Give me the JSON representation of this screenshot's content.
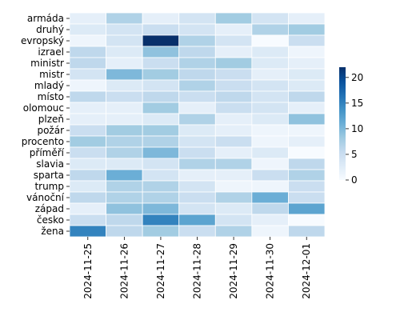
{
  "chart_data": {
    "type": "heatmap",
    "title": "",
    "xlabel": "",
    "ylabel": "",
    "x_categories": [
      "2024-11-25",
      "2024-11-26",
      "2024-11-27",
      "2024-11-28",
      "2024-11-29",
      "2024-11-30",
      "2024-12-01"
    ],
    "y_categories": [
      "armáda",
      "druhý",
      "evropský",
      "izrael",
      "ministr",
      "mistr",
      "mladý",
      "místo",
      "olomouc",
      "plzeň",
      "požár",
      "procento",
      "příměří",
      "slavia",
      "sparta",
      "trump",
      "vánoční",
      "západ",
      "česko",
      "žena"
    ],
    "values": [
      [
        2,
        7,
        2,
        4,
        8,
        4,
        2
      ],
      [
        3,
        4,
        5,
        4,
        2,
        7,
        8
      ],
      [
        1,
        4,
        22,
        7,
        4,
        0,
        5
      ],
      [
        6,
        3,
        9,
        6,
        2,
        3,
        1
      ],
      [
        6,
        2,
        5,
        7,
        8,
        3,
        2
      ],
      [
        4,
        10,
        8,
        6,
        5,
        2,
        3
      ],
      [
        1,
        3,
        4,
        7,
        5,
        4,
        3
      ],
      [
        6,
        5,
        6,
        5,
        6,
        4,
        6
      ],
      [
        2,
        2,
        8,
        2,
        5,
        4,
        2
      ],
      [
        2,
        2,
        3,
        7,
        2,
        3,
        9
      ],
      [
        5,
        8,
        8,
        3,
        2,
        1,
        1
      ],
      [
        8,
        7,
        7,
        4,
        5,
        1,
        2
      ],
      [
        5,
        7,
        10,
        5,
        2,
        3,
        0
      ],
      [
        3,
        3,
        4,
        7,
        7,
        1,
        6
      ],
      [
        6,
        11,
        4,
        2,
        2,
        5,
        7
      ],
      [
        3,
        7,
        7,
        4,
        1,
        1,
        5
      ],
      [
        6,
        7,
        7,
        5,
        7,
        11,
        5
      ],
      [
        2,
        9,
        10,
        4,
        3,
        6,
        12
      ],
      [
        5,
        6,
        15,
        12,
        4,
        2,
        0
      ],
      [
        15,
        6,
        8,
        5,
        7,
        1,
        6
      ]
    ],
    "colorbar": {
      "min": 0,
      "max": 22,
      "ticks": [
        0,
        5,
        10,
        15,
        20
      ],
      "colormap": "Blues"
    },
    "grid": false,
    "cell_border_color": "#ffffff"
  }
}
